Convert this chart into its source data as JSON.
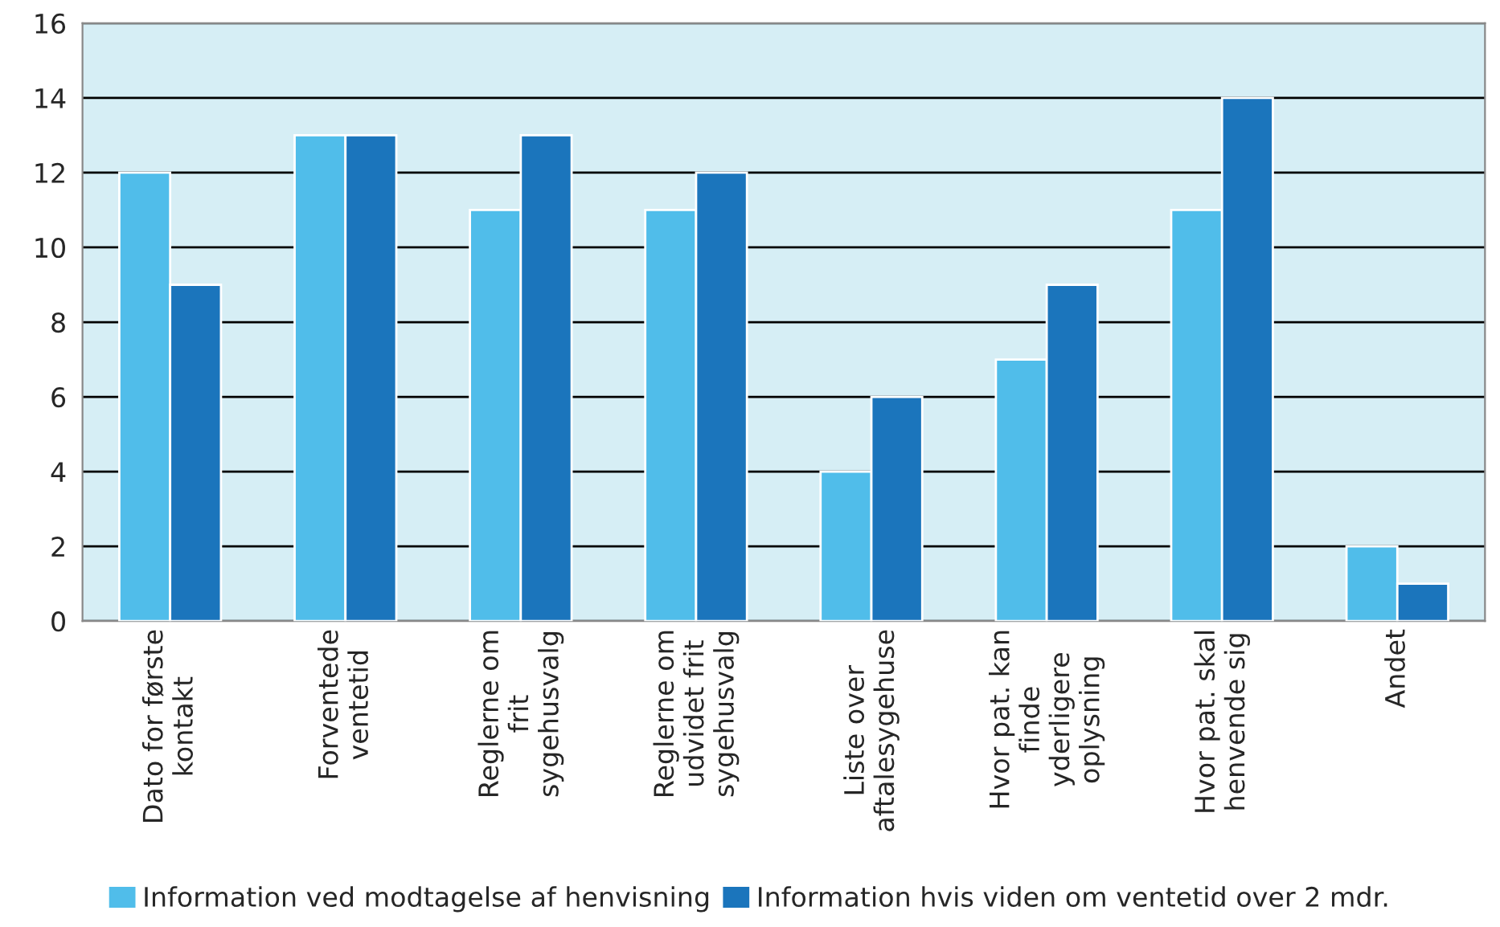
{
  "chart_data": {
    "type": "bar",
    "categories": [
      "Dato for første\nkontakt",
      "Forventede\nventetid",
      "Reglerne om\nfrit\nsygehusvalg",
      "Reglerne om\nudvidet frit\nsygehusvalg",
      "Liste over\naftalesygehuse",
      "Hvor pat. kan\nfinde\nyderligere\noplysning",
      "Hvor pat. skal\nhenvende sig",
      "Andet"
    ],
    "series": [
      {
        "name": "Information ved modtagelse af henvisning",
        "color": "#50bdea",
        "values": [
          12,
          13,
          11,
          11,
          4,
          7,
          11,
          2
        ]
      },
      {
        "name": "Information hvis viden om ventetid over 2 mdr.",
        "color": "#1b75bc",
        "values": [
          9,
          13,
          13,
          12,
          6,
          9,
          14,
          1
        ]
      }
    ],
    "ylim": [
      0,
      16
    ],
    "yticks": [
      0,
      2,
      4,
      6,
      8,
      10,
      12,
      14,
      16
    ],
    "grid": "y",
    "legend": "bottom"
  }
}
